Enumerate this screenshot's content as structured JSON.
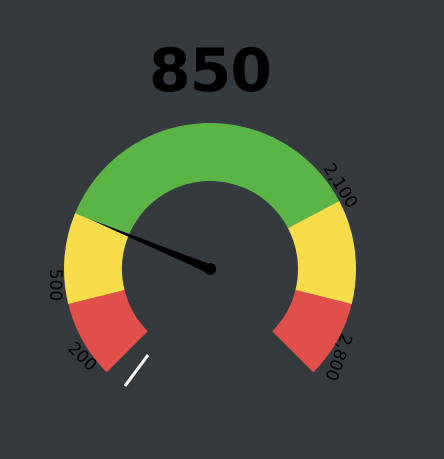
{
  "gauge": {
    "value": 850,
    "value_label": "850",
    "min": 200,
    "max": 2800,
    "tick_labels": {
      "t200": "200",
      "t500": "500",
      "t2100": "2,100",
      "t2800": "2,800"
    },
    "bands": [
      {
        "name": "red-low",
        "from": 200,
        "to": 500,
        "color": "#e04f4a"
      },
      {
        "name": "yellow-low",
        "from": 500,
        "to": 850,
        "color": "#f9dc4a"
      },
      {
        "name": "green",
        "from": 850,
        "to": 2100,
        "color": "#5bb446"
      },
      {
        "name": "yellow-high",
        "from": 2100,
        "to": 2500,
        "color": "#f9dc4a"
      },
      {
        "name": "red-high",
        "from": 2500,
        "to": 2800,
        "color": "#e04f4a"
      }
    ],
    "needle_color": "#000000",
    "background_color": "#353a3f"
  }
}
